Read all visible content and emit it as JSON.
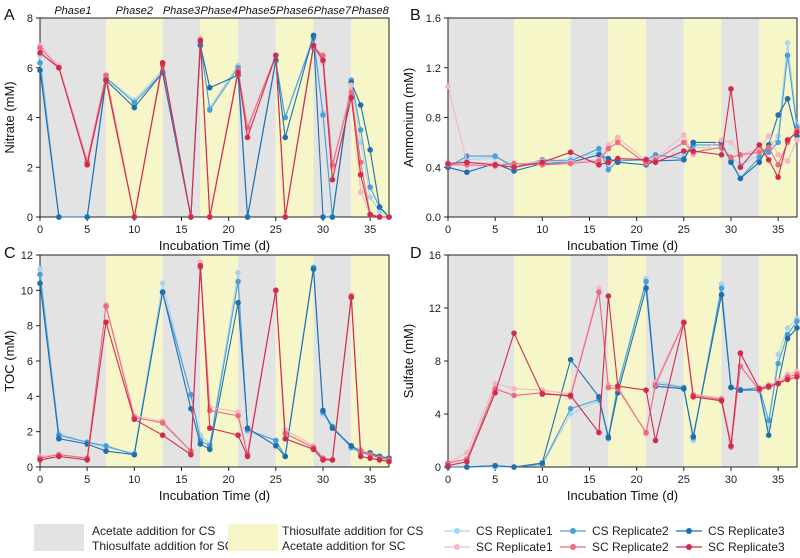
{
  "colors": {
    "phase_gray": "#e3e3e3",
    "phase_yellow": "#f6f6c8",
    "cs1": "#a9d4f0",
    "cs2": "#4a9fd8",
    "cs3": "#1f6fad",
    "sc1": "#f5b6c6",
    "sc2": "#ec6b7f",
    "sc3": "#d02c4e"
  },
  "phase_labels": [
    "Phase1",
    "Phase2",
    "Phase3",
    "Phase4",
    "Phase5",
    "Phase6",
    "Phase7",
    "Phase8"
  ],
  "phase_bounds": [
    0,
    7,
    13,
    17,
    21,
    25,
    29,
    33,
    37
  ],
  "legend": {
    "gray_line1": "Acetate addition for CS",
    "gray_line2": "Thiosulfate addition for SC",
    "yellow_line1": "Thiosulfate addition for CS",
    "yellow_line2": "Acetate addition for SC",
    "series_names": [
      "CS Replicate1",
      "CS Replicate2",
      "CS Replicate3",
      "SC Replicate1",
      "SC Replicate2",
      "SC Replicate3"
    ]
  },
  "chart_data": [
    {
      "panel": "A",
      "type": "line",
      "xlabel": "Incubation Time (d)",
      "ylabel": "Nitrate (mM)",
      "xlim": [
        0,
        37
      ],
      "ylim": [
        0,
        8
      ],
      "xticks": [
        0,
        5,
        10,
        15,
        20,
        25,
        30,
        35
      ],
      "yticks": [
        0,
        2,
        4,
        6,
        8
      ],
      "x": [
        0,
        2,
        5,
        7,
        10,
        13,
        16,
        17,
        18,
        21,
        22,
        25,
        26,
        29,
        30,
        31,
        33,
        34,
        35,
        36,
        37
      ],
      "series": [
        {
          "name": "CS Replicate1",
          "values": [
            6.5,
            0,
            0,
            5.6,
            4.7,
            5.9,
            0,
            6.9,
            4.4,
            6.1,
            0,
            6.2,
            4,
            7.3,
            4.2,
            0,
            5.5,
            3,
            0.8,
            0.2,
            0
          ]
        },
        {
          "name": "CS Replicate2",
          "values": [
            6.2,
            0,
            0,
            5.6,
            4.6,
            5.8,
            0,
            7,
            4.3,
            6,
            0,
            6.3,
            4,
            7.2,
            4.1,
            0,
            5.5,
            3.5,
            1.2,
            0.4,
            0
          ]
        },
        {
          "name": "CS Replicate3",
          "values": [
            5.9,
            0,
            0,
            5.5,
            4.4,
            5.8,
            0,
            6.9,
            5.2,
            5.7,
            0,
            6.3,
            3.2,
            7.3,
            0,
            0,
            5.4,
            4.5,
            2.7,
            0.4,
            0
          ]
        },
        {
          "name": "SC Replicate1",
          "values": [
            6.9,
            6.1,
            2.3,
            5.7,
            0,
            6.2,
            0,
            7.2,
            0,
            5.9,
            3.5,
            6.5,
            0,
            6.9,
            6.2,
            2,
            5.3,
            1,
            0.1,
            0,
            0
          ]
        },
        {
          "name": "SC Replicate2",
          "values": [
            6.8,
            6,
            2.2,
            5.7,
            0,
            6.1,
            0,
            7.1,
            0,
            5.9,
            3.6,
            6.5,
            0,
            6.8,
            6.5,
            2.1,
            5,
            2.2,
            0.1,
            0,
            0
          ]
        },
        {
          "name": "SC Replicate3",
          "values": [
            6.6,
            6,
            2.1,
            5.5,
            0,
            6.2,
            0,
            7.1,
            0,
            5.8,
            3.2,
            6.5,
            0,
            6.9,
            6.3,
            1.5,
            4.8,
            1.7,
            0.1,
            0,
            0
          ]
        }
      ]
    },
    {
      "panel": "B",
      "type": "line",
      "xlabel": "Incubation Time (d)",
      "ylabel": "Ammonium (mM)",
      "xlim": [
        0,
        37
      ],
      "ylim": [
        0,
        1.6
      ],
      "xticks": [
        0,
        5,
        10,
        15,
        20,
        25,
        30,
        35
      ],
      "yticks": [
        "0.0",
        "0.4",
        "0.8",
        "1.2",
        "1.6"
      ],
      "x": [
        0,
        2,
        5,
        7,
        10,
        13,
        16,
        17,
        18,
        21,
        22,
        25,
        26,
        29,
        30,
        31,
        33,
        34,
        35,
        36,
        37
      ],
      "series": [
        {
          "name": "CS Replicate1",
          "values": [
            0.41,
            0.46,
            0.48,
            0.42,
            0.44,
            0.47,
            0.52,
            0.42,
            0.46,
            0.47,
            0.48,
            0.5,
            0.56,
            0.55,
            0.48,
            0.42,
            0.5,
            0.55,
            0.65,
            1.4,
            0.74
          ]
        },
        {
          "name": "CS Replicate2",
          "values": [
            0.4,
            0.49,
            0.49,
            0.4,
            0.46,
            0.45,
            0.55,
            0.38,
            0.45,
            0.46,
            0.5,
            0.47,
            0.58,
            0.58,
            0.45,
            0.31,
            0.48,
            0.52,
            0.6,
            1.3,
            0.72
          ]
        },
        {
          "name": "CS Replicate3",
          "values": [
            0.4,
            0.36,
            0.43,
            0.37,
            0.43,
            0.44,
            0.5,
            0.47,
            0.44,
            0.42,
            0.45,
            0.46,
            0.6,
            0.6,
            0.44,
            0.31,
            0.44,
            0.58,
            0.82,
            0.95,
            0.65
          ]
        },
        {
          "name": "SC Replicate1",
          "values": [
            1.05,
            0.44,
            0.43,
            0.42,
            0.45,
            0.44,
            0.46,
            0.58,
            0.64,
            0.45,
            0.47,
            0.66,
            0.5,
            0.62,
            0.6,
            0.5,
            0.55,
            0.65,
            0.5,
            0.45,
            0.62
          ]
        },
        {
          "name": "SC Replicate2",
          "values": [
            0.42,
            0.42,
            0.41,
            0.43,
            0.42,
            0.43,
            0.45,
            0.55,
            0.6,
            0.43,
            0.46,
            0.6,
            0.52,
            0.56,
            0.48,
            0.5,
            0.52,
            0.56,
            0.42,
            0.6,
            0.7
          ]
        },
        {
          "name": "SC Replicate3",
          "values": [
            0.43,
            0.44,
            0.42,
            0.4,
            0.44,
            0.52,
            0.42,
            0.44,
            0.47,
            0.46,
            0.44,
            0.53,
            0.53,
            0.5,
            1.03,
            0.4,
            0.58,
            0.46,
            0.32,
            0.62,
            0.68
          ]
        }
      ]
    },
    {
      "panel": "C",
      "type": "line",
      "xlabel": "Incubation Time (d)",
      "ylabel": "TOC (mM)",
      "xlim": [
        0,
        37
      ],
      "ylim": [
        0,
        12
      ],
      "xticks": [
        0,
        5,
        10,
        15,
        20,
        25,
        30,
        35
      ],
      "yticks": [
        0,
        2,
        4,
        6,
        8,
        10,
        12
      ],
      "x": [
        0,
        2,
        5,
        7,
        10,
        13,
        16,
        17,
        18,
        21,
        22,
        25,
        26,
        29,
        30,
        31,
        33,
        34,
        35,
        36,
        37
      ],
      "series": [
        {
          "name": "CS Replicate1",
          "values": [
            11.2,
            1.9,
            1.4,
            1.1,
            0.8,
            10.4,
            4,
            1.8,
            1.3,
            11,
            2,
            1.5,
            0.6,
            11.2,
            3,
            2.2,
            1.1,
            0.9,
            0.8,
            0.6,
            0.5
          ]
        },
        {
          "name": "CS Replicate2",
          "values": [
            10.9,
            1.8,
            1.4,
            1.2,
            0.7,
            9.9,
            4.1,
            1.5,
            1.2,
            10.5,
            2.1,
            1.5,
            0.6,
            11.3,
            3.1,
            2.3,
            1.1,
            0.8,
            0.7,
            0.6,
            0.5
          ]
        },
        {
          "name": "CS Replicate3",
          "values": [
            10.4,
            1.6,
            1.3,
            0.9,
            0.7,
            9.9,
            3.3,
            1.3,
            1,
            9.3,
            2.2,
            1.2,
            0.6,
            11.2,
            3.2,
            2.2,
            1.2,
            0.9,
            0.8,
            0.6,
            0.5
          ]
        },
        {
          "name": "SC Replicate1",
          "values": [
            0.6,
            0.7,
            0.5,
            9.2,
            2.9,
            2.6,
            0.9,
            11.6,
            3.4,
            3.1,
            0.8,
            10,
            2.1,
            1.2,
            0.5,
            0.4,
            9.6,
            1,
            0.7,
            0.5,
            0.4
          ]
        },
        {
          "name": "SC Replicate2",
          "values": [
            0.5,
            0.7,
            0.5,
            9.1,
            2.8,
            2.5,
            0.9,
            11.3,
            3.2,
            2.9,
            0.7,
            10,
            1.9,
            1.1,
            0.5,
            0.4,
            9.7,
            0.9,
            0.7,
            0.5,
            0.4
          ]
        },
        {
          "name": "SC Replicate3",
          "values": [
            0.4,
            0.6,
            0.4,
            8.2,
            2.7,
            1.8,
            0.7,
            11.4,
            2.2,
            1.8,
            0.6,
            10,
            1.6,
            1,
            0.4,
            0.4,
            9.6,
            0.6,
            0.5,
            0.4,
            0.3
          ]
        }
      ]
    },
    {
      "panel": "D",
      "type": "line",
      "xlabel": "Incubation Time (d)",
      "ylabel": "Sulfate (mM)",
      "xlim": [
        0,
        37
      ],
      "ylim": [
        0,
        16
      ],
      "xticks": [
        0,
        5,
        10,
        15,
        20,
        25,
        30,
        35
      ],
      "yticks": [
        0,
        4,
        8,
        12,
        16
      ],
      "x": [
        0,
        2,
        5,
        7,
        10,
        13,
        16,
        17,
        18,
        21,
        22,
        25,
        26,
        29,
        30,
        31,
        33,
        34,
        35,
        36,
        37
      ],
      "series": [
        {
          "name": "CS Replicate1",
          "values": [
            0,
            0,
            0,
            0,
            0.2,
            4,
            5,
            2.1,
            6,
            14.2,
            6.5,
            6,
            2,
            13.8,
            6.1,
            5.9,
            5.8,
            3,
            8.5,
            10.5,
            11.2
          ]
        },
        {
          "name": "CS Replicate2",
          "values": [
            0,
            0,
            0.1,
            0,
            0.2,
            4.4,
            5.1,
            2.3,
            6.1,
            14,
            6.3,
            6,
            2.2,
            13.5,
            6,
            5.8,
            6,
            3.5,
            7.8,
            10,
            11
          ]
        },
        {
          "name": "CS Replicate3",
          "values": [
            0,
            0,
            0.1,
            0,
            0.3,
            8.1,
            5.3,
            2.2,
            5.6,
            13.5,
            6.1,
            5.9,
            2.3,
            13,
            6,
            5.8,
            5.8,
            2.4,
            6.3,
            9.7,
            10.5
          ]
        },
        {
          "name": "SC Replicate1",
          "values": [
            0.3,
            1.1,
            6.3,
            5.9,
            5.8,
            5.5,
            13.5,
            6.2,
            6.1,
            2.5,
            6.4,
            11,
            5.5,
            5.2,
            2,
            8.5,
            6,
            6.2,
            6.5,
            7,
            7.2
          ]
        },
        {
          "name": "SC Replicate2",
          "values": [
            0.3,
            0.6,
            5.9,
            5.4,
            5.6,
            5.3,
            13.2,
            6,
            5.9,
            2.6,
            6.2,
            10.9,
            5.4,
            5.1,
            1.5,
            7.6,
            5.8,
            6,
            6.3,
            6.8,
            7
          ]
        },
        {
          "name": "SC Replicate3",
          "values": [
            0.1,
            0.4,
            5.6,
            10.1,
            5.5,
            5.4,
            2.6,
            12.9,
            6.1,
            5.8,
            2,
            10.9,
            5.3,
            5,
            1.6,
            8.6,
            5.9,
            6.1,
            6.3,
            6.6,
            6.8
          ]
        }
      ]
    }
  ]
}
